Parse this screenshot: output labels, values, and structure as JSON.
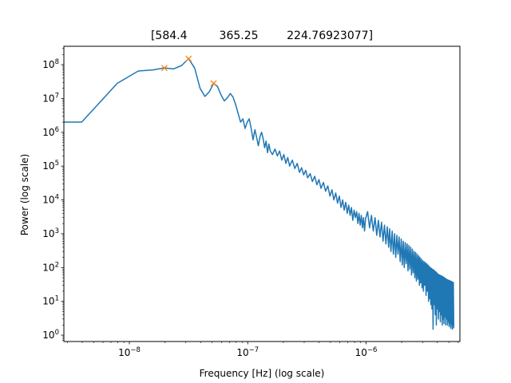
{
  "chart_data": {
    "type": "line",
    "title": "[584.4         365.25        224.76923077]",
    "xlabel": "Frequency [Hz] (log scale)",
    "ylabel": "Power (log scale)",
    "x_scale": "log",
    "y_scale": "log",
    "xlim": [
      2.8e-09,
      6.2e-06
    ],
    "ylim": [
      0.65,
      350000000.0
    ],
    "x_tick_labels": [
      {
        "value": 1e-08,
        "base": "10",
        "exp": "−8"
      },
      {
        "value": 1e-07,
        "base": "10",
        "exp": "−7"
      },
      {
        "value": 1e-06,
        "base": "10",
        "exp": "−6"
      }
    ],
    "y_tick_labels": [
      {
        "value": 1,
        "base": "10",
        "exp": "0"
      },
      {
        "value": 10,
        "base": "10",
        "exp": "1"
      },
      {
        "value": 100,
        "base": "10",
        "exp": "2"
      },
      {
        "value": 1000,
        "base": "10",
        "exp": "3"
      },
      {
        "value": 10000,
        "base": "10",
        "exp": "4"
      },
      {
        "value": 100000,
        "base": "10",
        "exp": "5"
      },
      {
        "value": 1000000,
        "base": "10",
        "exp": "6"
      },
      {
        "value": 10000000,
        "base": "10",
        "exp": "7"
      },
      {
        "value": 100000000,
        "base": "10",
        "exp": "8"
      }
    ],
    "grid": false,
    "colors": {
      "spectrum": "#1f77b4",
      "peaks": "#ff7f0e"
    },
    "series": [
      {
        "kind": "line",
        "points": [
          [
            2.8e-09,
            2000000.0
          ],
          [
            3.96e-09,
            2000000.0
          ],
          [
            7.9e-09,
            28000000.0
          ],
          [
            1.19e-08,
            65000000.0
          ],
          [
            1.58e-08,
            70000000.0
          ],
          [
            1.98e-08,
            80000000.0
          ],
          [
            2.37e-08,
            75000000.0
          ],
          [
            2.77e-08,
            95000000.0
          ],
          [
            3.17e-08,
            150000000.0
          ],
          [
            3.56e-08,
            80000000.0
          ],
          [
            3.96e-08,
            20000000.0
          ],
          [
            4.35e-08,
            11500000.0
          ],
          [
            4.75e-08,
            16000000.0
          ],
          [
            5.15e-08,
            28000000.0
          ],
          [
            5.54e-08,
            23000000.0
          ],
          [
            5.94e-08,
            13000000.0
          ],
          [
            6.34e-08,
            8500000.0
          ],
          [
            6.73e-08,
            10500000.0
          ],
          [
            7.13e-08,
            14000000.0
          ],
          [
            7.52e-08,
            11000000.0
          ],
          [
            7.92e-08,
            6500000.0
          ],
          [
            8.32e-08,
            3500000.0
          ],
          [
            8.71e-08,
            2000000.0
          ],
          [
            9.11e-08,
            2500000.0
          ],
          [
            9.5e-08,
            1300000.0
          ],
          [
            9.9e-08,
            2000000.0
          ],
          [
            1.03e-07,
            2500000.0
          ],
          [
            1.07e-07,
            1300000.0
          ],
          [
            1.11e-07,
            600000.0
          ],
          [
            1.15e-07,
            1200000.0
          ],
          [
            1.19e-07,
            700000.0
          ],
          [
            1.23e-07,
            400000.0
          ],
          [
            1.27e-07,
            750000.0
          ],
          [
            1.31e-07,
            1000000.0
          ],
          [
            1.35e-07,
            650000.0
          ],
          [
            1.39e-07,
            350000.0
          ],
          [
            1.43e-07,
            550000.0
          ],
          [
            1.47e-07,
            250000.0
          ],
          [
            1.51e-07,
            450000.0
          ],
          [
            1.55e-07,
            280000.0
          ],
          [
            1.62e-07,
            220000.0
          ],
          [
            1.7e-07,
            320000.0
          ],
          [
            1.78e-07,
            200000.0
          ],
          [
            1.86e-07,
            280000.0
          ],
          [
            1.94e-07,
            150000.0
          ],
          [
            2.02e-07,
            220000.0
          ],
          [
            2.1e-07,
            120000.0
          ],
          [
            2.18e-07,
            180000.0
          ],
          [
            2.26e-07,
            100000.0
          ],
          [
            2.38e-07,
            150000.0
          ],
          [
            2.5e-07,
            85000.0
          ],
          [
            2.62e-07,
            120000.0
          ],
          [
            2.74e-07,
            65000.0
          ],
          [
            2.85e-07,
            90000.0
          ],
          [
            2.97e-07,
            55000.0
          ],
          [
            3.09e-07,
            75000.0
          ],
          [
            3.21e-07,
            45000.0
          ],
          [
            3.37e-07,
            60000.0
          ],
          [
            3.52e-07,
            35000.0
          ],
          [
            3.68e-07,
            50000.0
          ],
          [
            3.84e-07,
            28000.0
          ],
          [
            4e-07,
            40000.0
          ],
          [
            4.16e-07,
            22000.0
          ],
          [
            4.36e-07,
            33000.0
          ],
          [
            4.55e-07,
            18000.0
          ],
          [
            4.75e-07,
            26000.0
          ],
          [
            4.95e-07,
            13000.0
          ],
          [
            5.15e-07,
            20000.0
          ],
          [
            5.34e-07,
            10000.0
          ],
          [
            5.54e-07,
            16000.0
          ],
          [
            5.74e-07,
            8000.0
          ],
          [
            5.94e-07,
            13000.0
          ],
          [
            6.14e-07,
            6000.0
          ],
          [
            6.34e-07,
            10000.0
          ],
          [
            6.53e-07,
            5000.0
          ],
          [
            6.73e-07,
            8500.0
          ],
          [
            6.93e-07,
            4000.0
          ],
          [
            7.13e-07,
            7000.0
          ],
          [
            7.33e-07,
            3500.0
          ],
          [
            7.52e-07,
            6000.0
          ],
          [
            7.72e-07,
            2500.0
          ],
          [
            7.92e-07,
            5000.0
          ],
          [
            8.12e-07,
            3000.0
          ],
          [
            8.32e-07,
            4500.0
          ],
          [
            8.52e-07,
            2000.0
          ],
          [
            8.71e-07,
            4000.0
          ],
          [
            8.91e-07,
            1800.0
          ],
          [
            9.11e-07,
            3500.0
          ],
          [
            9.31e-07,
            1500.0
          ],
          [
            9.5e-07,
            3000.0
          ],
          [
            9.7e-07,
            1200.0
          ],
          [
            9.9e-07,
            2800.0
          ],
          [
            1.03e-06,
            4500.0
          ],
          [
            1.07e-06,
            1500.0
          ],
          [
            1.11e-06,
            3500.0
          ],
          [
            1.15e-06,
            1200.0
          ],
          [
            1.19e-06,
            3000.0
          ],
          [
            1.23e-06,
            900.0
          ],
          [
            1.27e-06,
            2500.0
          ],
          [
            1.31e-06,
            800.0
          ],
          [
            1.35e-06,
            2200.0
          ],
          [
            1.39e-06,
            600.0
          ],
          [
            1.43e-06,
            1800.0
          ],
          [
            1.47e-06,
            500.0
          ],
          [
            1.51e-06,
            1600.0
          ],
          [
            1.55e-06,
            400.0
          ],
          [
            1.58e-06,
            1400.0
          ],
          [
            1.62e-06,
            300.0
          ],
          [
            1.66e-06,
            1200.0
          ],
          [
            1.7e-06,
            250.0
          ],
          [
            1.74e-06,
            1000.0
          ],
          [
            1.78e-06,
            200.0
          ],
          [
            1.82e-06,
            900.0
          ],
          [
            1.86e-06,
            250.0
          ],
          [
            1.9e-06,
            800.0
          ],
          [
            1.94e-06,
            150.0
          ],
          [
            1.98e-06,
            700.0
          ],
          [
            2.02e-06,
            120.0
          ],
          [
            2.06e-06,
            600.0
          ],
          [
            2.1e-06,
            100.0
          ],
          [
            2.14e-06,
            550.0
          ],
          [
            2.18e-06,
            130.0
          ],
          [
            2.22e-06,
            500.0
          ],
          [
            2.26e-06,
            80
          ],
          [
            2.3e-06,
            450.0
          ],
          [
            2.34e-06,
            90
          ],
          [
            2.38e-06,
            400.0
          ],
          [
            2.42e-06,
            60
          ],
          [
            2.46e-06,
            350.0
          ],
          [
            2.5e-06,
            70
          ],
          [
            2.54e-06,
            300.0
          ],
          [
            2.58e-06,
            50
          ],
          [
            2.62e-06,
            280.0
          ],
          [
            2.66e-06,
            40
          ],
          [
            2.7e-06,
            250.0
          ],
          [
            2.74e-06,
            45
          ],
          [
            2.78e-06,
            220.0
          ],
          [
            2.82e-06,
            30
          ],
          [
            2.85e-06,
            200.0
          ],
          [
            2.89e-06,
            35
          ],
          [
            2.93e-06,
            180.0
          ],
          [
            2.97e-06,
            25
          ],
          [
            3.01e-06,
            160.0
          ],
          [
            3.05e-06,
            20
          ],
          [
            3.09e-06,
            150.0
          ],
          [
            3.13e-06,
            30
          ],
          [
            3.17e-06,
            140.0
          ],
          [
            3.21e-06,
            15
          ],
          [
            3.25e-06,
            130.0
          ],
          [
            3.29e-06,
            20
          ],
          [
            3.33e-06,
            120.0
          ],
          [
            3.37e-06,
            10
          ],
          [
            3.41e-06,
            110.0
          ],
          [
            3.45e-06,
            12
          ],
          [
            3.49e-06,
            100.0
          ],
          [
            3.52e-06,
            8
          ],
          [
            3.56e-06,
            95
          ],
          [
            3.6e-06,
            6
          ],
          [
            3.64e-06,
            90
          ],
          [
            3.68e-06,
            1.5
          ],
          [
            3.72e-06,
            85
          ],
          [
            3.76e-06,
            8
          ],
          [
            3.8e-06,
            80
          ],
          [
            3.84e-06,
            4
          ],
          [
            3.88e-06,
            75
          ],
          [
            3.92e-06,
            2
          ],
          [
            3.96e-06,
            70
          ],
          [
            4e-06,
            6
          ],
          [
            4.04e-06,
            65
          ],
          [
            4.08e-06,
            3
          ],
          [
            4.12e-06,
            62
          ],
          [
            4.16e-06,
            5
          ],
          [
            4.2e-06,
            60
          ],
          [
            4.24e-06,
            2.5
          ],
          [
            4.28e-06,
            58
          ],
          [
            4.32e-06,
            4
          ],
          [
            4.36e-06,
            56
          ],
          [
            4.4e-06,
            2
          ],
          [
            4.44e-06,
            54
          ],
          [
            4.47e-06,
            3
          ],
          [
            4.51e-06,
            52
          ],
          [
            4.55e-06,
            2.2
          ],
          [
            4.59e-06,
            50
          ],
          [
            4.63e-06,
            3.5
          ],
          [
            4.67e-06,
            48
          ],
          [
            4.71e-06,
            2
          ],
          [
            4.75e-06,
            46
          ],
          [
            4.79e-06,
            3
          ],
          [
            4.83e-06,
            44
          ],
          [
            4.87e-06,
            2
          ],
          [
            4.91e-06,
            43
          ],
          [
            4.95e-06,
            2.5
          ],
          [
            4.99e-06,
            42
          ],
          [
            5.03e-06,
            1.8
          ],
          [
            5.07e-06,
            41
          ],
          [
            5.11e-06,
            2.2
          ],
          [
            5.15e-06,
            40
          ],
          [
            5.19e-06,
            1.6
          ],
          [
            5.23e-06,
            39
          ],
          [
            5.27e-06,
            2
          ],
          [
            5.31e-06,
            38
          ],
          [
            5.35e-06,
            1.5
          ],
          [
            5.39e-06,
            37
          ],
          [
            5.42e-06,
            2
          ],
          [
            5.46e-06,
            36
          ],
          [
            5.5e-06,
            1.6
          ]
        ]
      },
      {
        "kind": "markers",
        "marker": "x",
        "points": [
          [
            1.98e-08,
            80000000.0
          ],
          [
            3.17e-08,
            150000000.0
          ],
          [
            5.15e-08,
            28000000.0
          ]
        ]
      }
    ]
  }
}
